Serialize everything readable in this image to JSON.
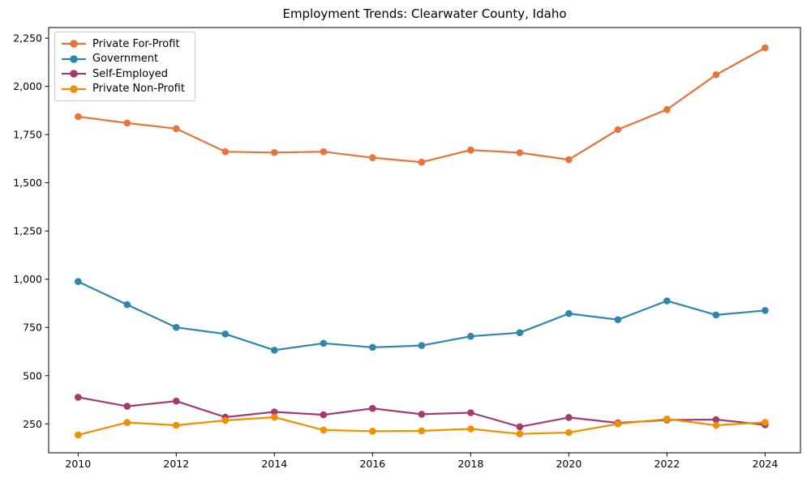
{
  "title": "Employment Trends: Clearwater County, Idaho",
  "colors": {
    "private_for_profit": "#E8743B",
    "government": "#2E86AB",
    "self_employed": "#A23B72",
    "private_non_profit": "#F18F01",
    "axis": "#000000",
    "text": "#000000",
    "legend_border": "#c9c9c9"
  },
  "chart_data": {
    "type": "line",
    "title": "Employment Trends: Clearwater County, Idaho",
    "xlabel": "",
    "ylabel": "",
    "x": [
      2010,
      2011,
      2012,
      2013,
      2014,
      2015,
      2016,
      2017,
      2018,
      2019,
      2020,
      2021,
      2022,
      2023,
      2024
    ],
    "series": [
      {
        "name": "Private For-Profit",
        "color": "#E8743B",
        "values": [
          1843,
          1810,
          1781,
          1661,
          1657,
          1661,
          1630,
          1607,
          1670,
          1656,
          1620,
          1776,
          1880,
          2060,
          2200
        ]
      },
      {
        "name": "Government",
        "color": "#2E86AB",
        "values": [
          988,
          868,
          750,
          716,
          632,
          668,
          647,
          656,
          704,
          723,
          822,
          790,
          888,
          815,
          838
        ]
      },
      {
        "name": "Self-Employed",
        "color": "#A23B72",
        "values": [
          388,
          341,
          368,
          285,
          312,
          297,
          330,
          300,
          308,
          235,
          283,
          255,
          270,
          272,
          245
        ]
      },
      {
        "name": "Private Non-Profit",
        "color": "#F18F01",
        "values": [
          193,
          257,
          243,
          268,
          285,
          218,
          212,
          214,
          224,
          198,
          205,
          250,
          275,
          243,
          258
        ]
      }
    ],
    "xticks": [
      2010,
      2012,
      2014,
      2016,
      2018,
      2020,
      2022,
      2024
    ],
    "yticks": [
      250,
      500,
      750,
      1000,
      1250,
      1500,
      1750,
      2000,
      2250
    ],
    "ytick_labels": [
      "250",
      "500",
      "750",
      "1,000",
      "1,250",
      "1,500",
      "1,750",
      "2,000",
      "2,250"
    ],
    "xlim": [
      2009.4,
      2024.72
    ],
    "ylim": [
      100,
      2305
    ],
    "grid": false,
    "legend_position": "upper-left"
  }
}
